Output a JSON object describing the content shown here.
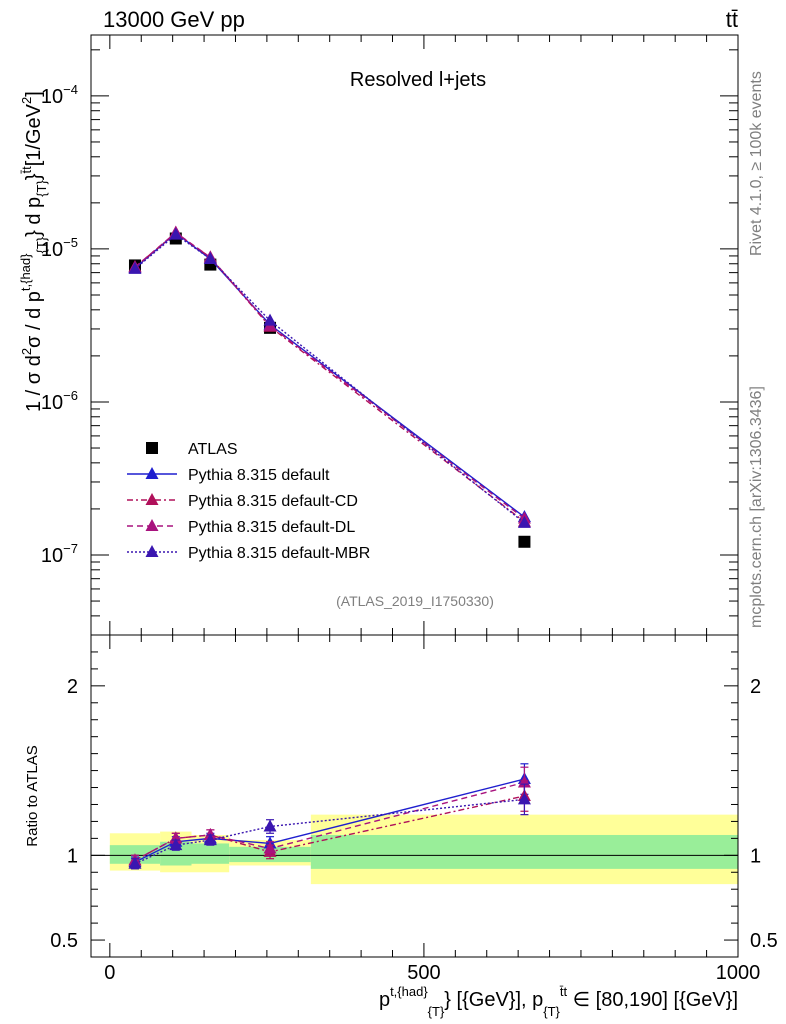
{
  "header": {
    "energy_label": "13000 GeV pp",
    "process_label": "tt̄"
  },
  "side_labels": {
    "rivet": "Rivet 4.1.0, ≥ 100k events",
    "mcplots": "mcplots.cern.ch [arXiv:1306.3436]"
  },
  "chart_data": [
    {
      "type": "line",
      "panel": "main",
      "title": "Resolved l+jets",
      "watermark": "(ATLAS_2019_I1750330)",
      "ylabel_parts": {
        "a": "1 / σ d",
        "a_sup": "2",
        "b": "σ / d p",
        "b_sup": "t,{had}",
        "b_sub": "{T}",
        "c": "} d p",
        "c_sub": "{T}",
        "c_sup": "}",
        "d_sup": "t̄t",
        "e": "[1/GeV",
        "e_sup": "2",
        "f": "]"
      },
      "yscale": "log",
      "ylim": [
        3e-08,
        0.00025
      ],
      "xlim": [
        -30,
        1000
      ],
      "y_ticks": [
        {
          "value": 1e-07,
          "base": "10",
          "exp": "−7"
        },
        {
          "value": 1e-06,
          "base": "10",
          "exp": "−6"
        },
        {
          "value": 1e-05,
          "base": "10",
          "exp": "−5"
        },
        {
          "value": 0.0001,
          "base": "10",
          "exp": "−4"
        }
      ],
      "x": [
        40,
        105,
        160,
        255,
        660
      ],
      "series": [
        {
          "name": "ATLAS",
          "marker": "square",
          "color": "#000000",
          "dash": "",
          "values": [
            7.8e-06,
            1.17e-05,
            7.9e-06,
            3.05e-06,
            1.22e-07
          ]
        },
        {
          "name": "Pythia 8.315 default",
          "marker": "triangle",
          "color": "#1f1fcf",
          "dash": "",
          "values": [
            7.5e-06,
            1.27e-05,
            8.6e-06,
            3.2e-06,
            1.77e-07
          ]
        },
        {
          "name": "Pythia 8.315 default-CD",
          "marker": "triangle",
          "color": "#b0105a",
          "dash": "6,3,2,3",
          "values": [
            7.6e-06,
            1.27e-05,
            8.8e-06,
            3.1e-06,
            1.65e-07
          ]
        },
        {
          "name": "Pythia 8.315 default-DL",
          "marker": "triangle",
          "color": "#a8127e",
          "dash": "6,4",
          "values": [
            7.6e-06,
            1.28e-05,
            8.8e-06,
            3.15e-06,
            1.73e-07
          ]
        },
        {
          "name": "Pythia 8.315 default-MBR",
          "marker": "triangle",
          "color": "#3a16b0",
          "dash": "2,2",
          "values": [
            7.4e-06,
            1.24e-05,
            8.6e-06,
            3.4e-06,
            1.62e-07
          ]
        }
      ]
    },
    {
      "type": "line",
      "panel": "ratio",
      "ylabel": "Ratio to ATLAS",
      "ylim": [
        0.4,
        2.3
      ],
      "xlim": [
        -30,
        1000
      ],
      "y_ticks": [
        {
          "value": 0.5,
          "label": "0.5"
        },
        {
          "value": 1,
          "label": "1"
        },
        {
          "value": 2,
          "label": "2"
        }
      ],
      "x_ticks": [
        {
          "value": 0,
          "label": "0"
        },
        {
          "value": 500,
          "label": "500"
        },
        {
          "value": 1000,
          "label": "1000"
        }
      ],
      "xlabel_parts": {
        "a": "p",
        "a_sup": "t,{had}",
        "a_sub": "{T}",
        "b": "} [{GeV}], p",
        "b_sub": "{T}",
        "b_sup": "t̄t",
        "c": "∈ [80,190] [{GeV}]"
      },
      "bands": [
        {
          "x0": 0,
          "x1": 80,
          "inner": [
            0.95,
            1.06
          ],
          "outer": [
            0.91,
            1.13
          ]
        },
        {
          "x0": 80,
          "x1": 130,
          "inner": [
            0.94,
            1.08
          ],
          "outer": [
            0.9,
            1.14
          ]
        },
        {
          "x0": 130,
          "x1": 190,
          "inner": [
            0.95,
            1.07
          ],
          "outer": [
            0.9,
            1.12
          ]
        },
        {
          "x0": 190,
          "x1": 320,
          "inner": [
            0.96,
            1.05
          ],
          "outer": [
            0.94,
            1.09
          ]
        },
        {
          "x0": 320,
          "x1": 1000,
          "inner": [
            0.92,
            1.12
          ],
          "outer": [
            0.83,
            1.24
          ]
        }
      ],
      "x": [
        40,
        105,
        160,
        255,
        660
      ],
      "series": [
        {
          "name": "Pythia 8.315 default",
          "marker": "triangle",
          "color": "#1f1fcf",
          "dash": "",
          "values": [
            0.96,
            1.08,
            1.1,
            1.07,
            1.45
          ],
          "err": [
            0.03,
            0.03,
            0.03,
            0.04,
            0.09
          ]
        },
        {
          "name": "Pythia 8.315 default-CD",
          "marker": "triangle",
          "color": "#b0105a",
          "dash": "6,3,2,3",
          "values": [
            0.97,
            1.1,
            1.12,
            1.02,
            1.35
          ],
          "err": [
            0.03,
            0.03,
            0.03,
            0.04,
            0.09
          ]
        },
        {
          "name": "Pythia 8.315 default-DL",
          "marker": "triangle",
          "color": "#a8127e",
          "dash": "6,4",
          "values": [
            0.97,
            1.1,
            1.12,
            1.04,
            1.43
          ],
          "err": [
            0.03,
            0.03,
            0.03,
            0.04,
            0.09
          ]
        },
        {
          "name": "Pythia 8.315 default-MBR",
          "marker": "triangle",
          "color": "#3a16b0",
          "dash": "2,2",
          "values": [
            0.95,
            1.06,
            1.09,
            1.17,
            1.33
          ],
          "err": [
            0.03,
            0.03,
            0.03,
            0.04,
            0.09
          ]
        }
      ]
    }
  ]
}
